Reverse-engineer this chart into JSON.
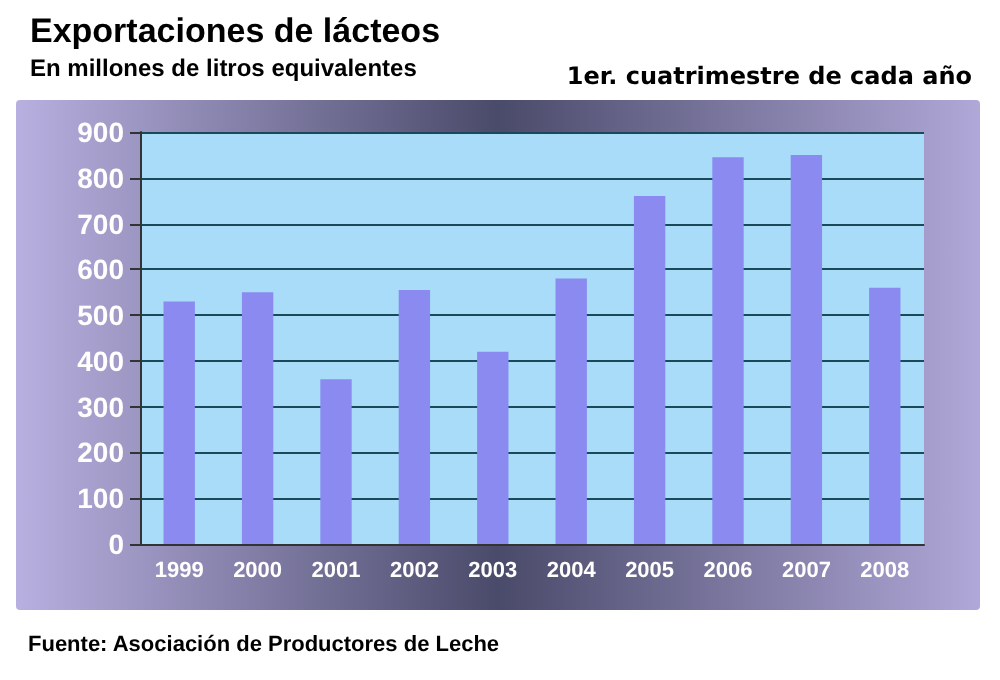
{
  "chart_data": {
    "type": "bar",
    "title": "Exportaciones de lácteos",
    "subtitle": "En millones de litros equivalentes",
    "annotations": [
      "1er. cuatrimestre de cada año",
      "Fuente: Asociación de Productores de Leche"
    ],
    "categories": [
      "1999",
      "2000",
      "2001",
      "2002",
      "2003",
      "2004",
      "2005",
      "2006",
      "2007",
      "2008"
    ],
    "values": [
      530,
      550,
      360,
      555,
      420,
      580,
      760,
      845,
      850,
      560
    ],
    "color": "#8a8af0",
    "ylim": [
      0,
      900
    ],
    "yticks": [
      0,
      100,
      200,
      300,
      400,
      500,
      600,
      700,
      800,
      900
    ],
    "grid": "y"
  }
}
